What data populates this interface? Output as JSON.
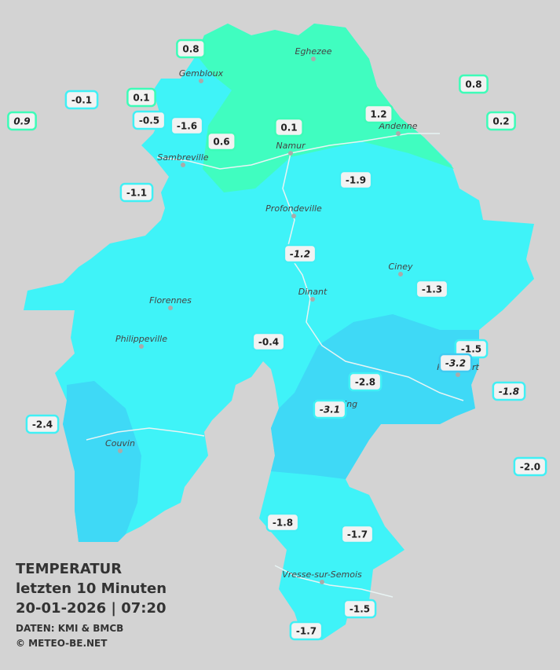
{
  "legend": {
    "title": "TEMPERATUR",
    "period": "letzten 10 Minuten",
    "datetime": "20-01-2026  |  07:20",
    "source": "DATEN: KMI & BMCB",
    "credit": "© METEO-BE.NET"
  },
  "places": [
    "Eghezee",
    "Gembloux",
    "Andenne",
    "Namur",
    "Sambreville",
    "Profondeville",
    "Ciney",
    "Dinant",
    "Florennes",
    "Philippeville",
    "Beauraing",
    "Rochefort",
    "Couvin",
    "Vresse-sur-Semois"
  ],
  "stations": [
    "0.8",
    "-0.1",
    "0.1",
    "0.9",
    "-0.5",
    "-1.6",
    "0.6",
    "0.1",
    "1.2",
    "0.8",
    "0.2",
    "-1.1",
    "-1.9",
    "-1.2",
    "-1.3",
    "-0.4",
    "-1.5",
    "-3.2",
    "-2.8",
    "-1.8",
    "-3.1",
    "-2.4",
    "-2.0",
    "-1.8",
    "-1.7",
    "-1.5",
    "-1.7"
  ]
}
